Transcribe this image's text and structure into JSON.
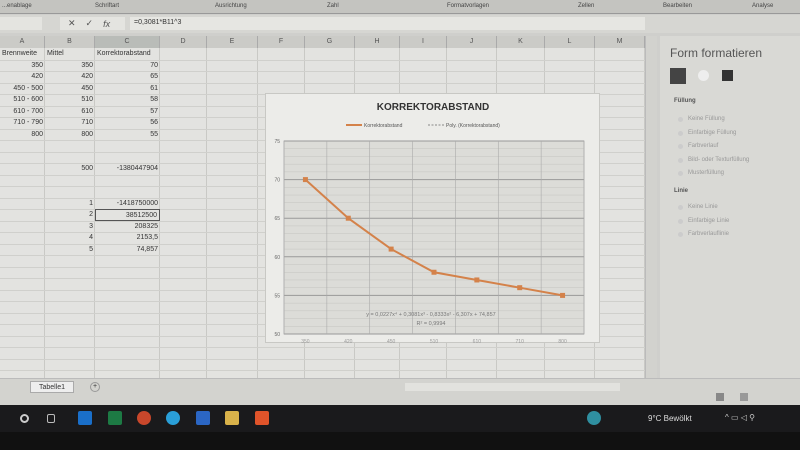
{
  "ribbon": {
    "groups": [
      "...enablage",
      "Schriftart",
      "Ausrichtung",
      "Zahl",
      "Formatvorlagen",
      "Zellen",
      "Bearbeiten",
      "Analyse"
    ]
  },
  "formula_bar": {
    "value": "=0,3081*B11^3",
    "fx": "fx"
  },
  "columns": [
    "A",
    "B",
    "C",
    "D",
    "E",
    "F",
    "G",
    "H",
    "I",
    "J",
    "K",
    "L",
    "M"
  ],
  "table": {
    "headers": [
      "Brennweite",
      "Mittel",
      "Korrektorabstand"
    ],
    "rows": [
      [
        "350",
        "350",
        "70"
      ],
      [
        "420",
        "420",
        "65"
      ],
      [
        "450 - 500",
        "450",
        "61"
      ],
      [
        "510 - 600",
        "510",
        "58"
      ],
      [
        "610 - 700",
        "610",
        "57"
      ],
      [
        "710 - 790",
        "710",
        "56"
      ],
      [
        "800",
        "800",
        "55"
      ]
    ]
  },
  "calc": {
    "b": "500",
    "c": "-1380447904"
  },
  "coeffs": [
    [
      "1",
      "-1418750000"
    ],
    [
      "2",
      "38512500"
    ],
    [
      "3",
      "208325"
    ],
    [
      "4",
      "2153,5"
    ],
    [
      "5",
      "74,857"
    ]
  ],
  "chart_data": {
    "type": "line",
    "title": "KORREKTORABSTAND",
    "categories": [
      "350",
      "420",
      "450",
      "510",
      "610",
      "710",
      "800"
    ],
    "series": [
      {
        "name": "Korrektorabstand",
        "values": [
          70,
          65,
          61,
          58,
          57,
          56,
          55
        ],
        "color": "#d4824a"
      }
    ],
    "trendline": {
      "name": "Poly. (Korrektorabstand)",
      "equation": "y = 0,0227x⁴ + 0,3081x³ - 0,8333x² - 6,307x + 74,857",
      "r2": "R² = 0,9994"
    },
    "ylim": [
      50,
      75
    ],
    "yticks": [
      50,
      55,
      60,
      65,
      70,
      75
    ],
    "grid": true,
    "legend": "top"
  },
  "panel": {
    "title": "Form formatieren",
    "fill_header": "Füllung",
    "fill": [
      "Keine Füllung",
      "Einfarbige Füllung",
      "Farbverlauf",
      "Bild- oder Texturfüllung",
      "Musterfüllung"
    ],
    "line_header": "Linie",
    "line": [
      "Keine Linie",
      "Einfarbige Linie",
      "Farbverlauflinie"
    ]
  },
  "sheet_tab": "Tabelle1",
  "taskbar": {
    "weather": "9°C Bewölkt"
  }
}
